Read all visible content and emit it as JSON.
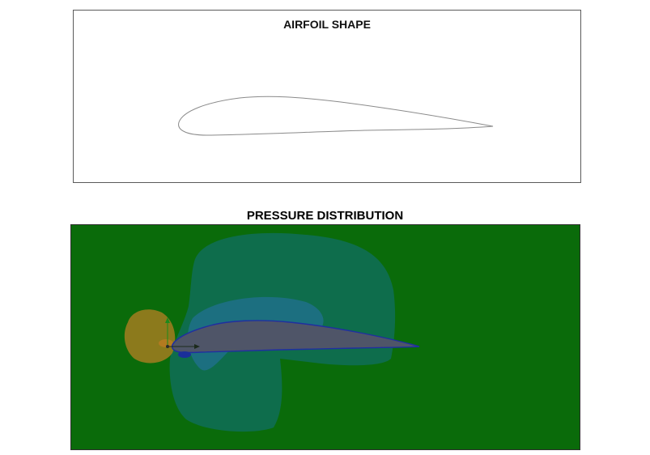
{
  "airfoil_panel": {
    "title": "AIRFOIL SHAPE"
  },
  "pressure_panel": {
    "title": "PRESSURE DISTRIBUTION",
    "colors": {
      "background": "#0a6b0a",
      "low_pressure_region": "#0e6d4c",
      "lower_pressure_region": "#187a6a",
      "suction_core": "#1c6f80",
      "stagnation_high": "#8c7a1c",
      "stagnation_core": "#b37a20",
      "airfoil_fill": "#4f5568",
      "airfoil_edge": "#1f2fa0",
      "leading_edge_low": "#1a2f9a"
    }
  }
}
